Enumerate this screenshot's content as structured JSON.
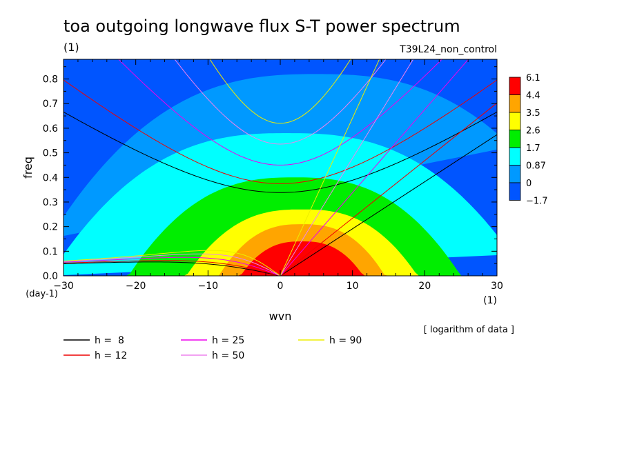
{
  "title": "toa outgoing longwave flux S-T power spectrum",
  "subtitle_units": "(1)",
  "run_name": "T39L24_non_control",
  "chart_data": {
    "type": "heatmap",
    "title": "toa outgoing longwave flux S-T power spectrum",
    "xlabel": "wvn",
    "x_unit": "(1)",
    "ylabel": "freq",
    "y_unit": "(day-1)",
    "xlim": [
      -30,
      30
    ],
    "ylim": [
      0,
      0.88
    ],
    "x_ticks": [
      -30,
      -20,
      -10,
      0,
      10,
      20,
      30
    ],
    "x_tick_labels": [
      "−30",
      "−20",
      "−10",
      "0",
      "10",
      "20",
      "30"
    ],
    "y_ticks": [
      0.0,
      0.1,
      0.2,
      0.3,
      0.4,
      0.5,
      0.6,
      0.7,
      0.8
    ],
    "y_tick_labels": [
      "0.0",
      "0.1",
      "0.2",
      "0.3",
      "0.4",
      "0.5",
      "0.6",
      "0.7",
      "0.8"
    ],
    "note": "[ logarithm of data ]",
    "colorbar": {
      "labels": [
        "6.1",
        "4.4",
        "3.5",
        "2.6",
        "1.7",
        "0.87",
        "0",
        "−1.7"
      ],
      "colors": [
        "#ff0000",
        "#ffa500",
        "#ffff00",
        "#00ee00",
        "#00ffff",
        "#0099ff",
        "#0055ff"
      ]
    },
    "contour_levels": [
      {
        "level": 6.1,
        "color": "#ff0000",
        "peak_wvn": 3,
        "peak_freq": 0.14,
        "half_width_wvn": 8.5
      },
      {
        "level": 4.4,
        "color": "#ffa500",
        "peak_wvn": 3,
        "peak_freq": 0.21,
        "half_width_wvn": 11.5
      },
      {
        "level": 3.5,
        "color": "#ffff00",
        "peak_wvn": 3,
        "peak_freq": 0.27,
        "half_width_wvn": 16
      },
      {
        "level": 2.6,
        "color": "#00ee00",
        "peak_wvn": 2,
        "peak_freq": 0.4,
        "half_width_wvn": 23
      },
      {
        "level": 1.7,
        "color": "#00ffff",
        "peak_wvn": 1,
        "peak_freq": 0.58,
        "half_width_wvn": 33
      },
      {
        "level": 0.87,
        "color": "#0099ff",
        "peak_wvn": 5,
        "peak_freq": 0.82,
        "half_width_wvn": 40
      }
    ],
    "series": [
      {
        "name": "h =  8",
        "equivalent_depth": 8,
        "color": "#000000"
      },
      {
        "name": "h = 12",
        "equivalent_depth": 12,
        "color": "#ee0000"
      },
      {
        "name": "h = 25",
        "equivalent_depth": 25,
        "color": "#ee00ee"
      },
      {
        "name": "h = 50",
        "equivalent_depth": 50,
        "color": "#ee82ee"
      },
      {
        "name": "h = 90",
        "equivalent_depth": 90,
        "color": "#eeee00"
      }
    ],
    "dispersion_families": [
      "kelvin",
      "n1_inertio_gravity",
      "rossby"
    ]
  }
}
